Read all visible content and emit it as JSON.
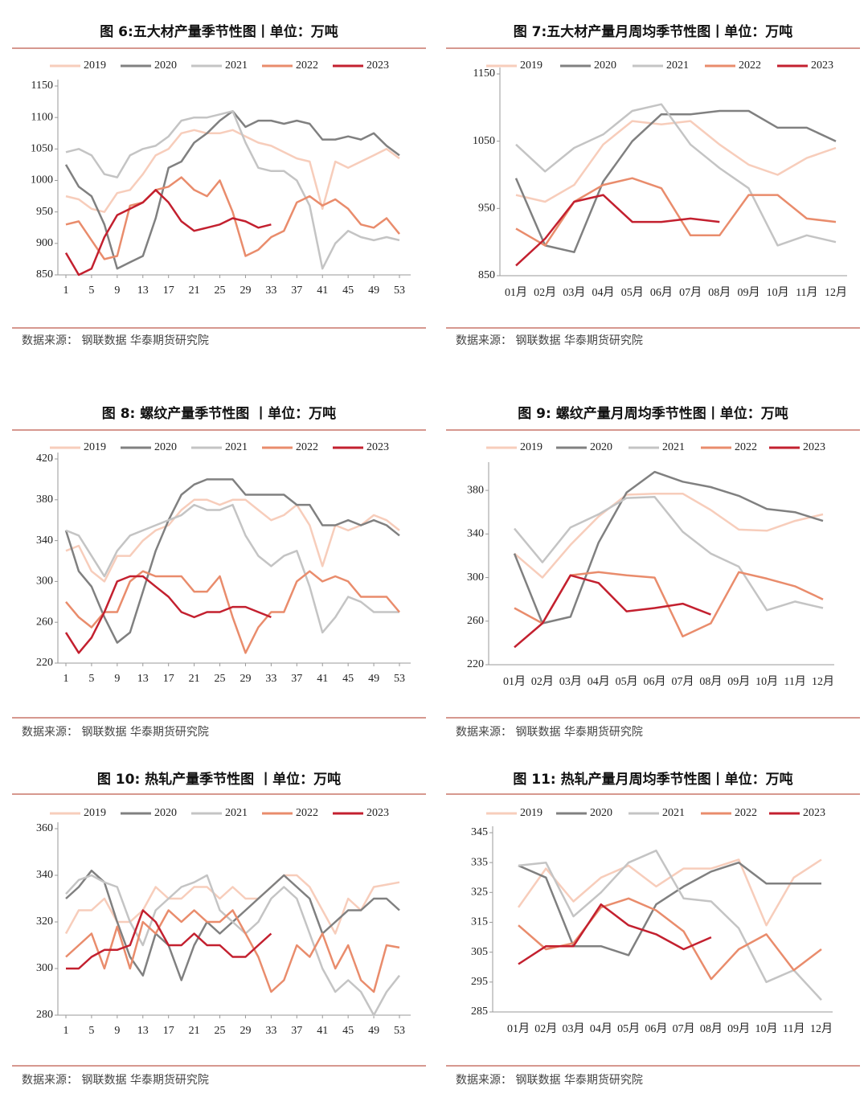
{
  "chart_data": [
    {
      "type": "line",
      "title": "图 6:五大材产量季节性图丨单位：万吨",
      "source": "数据来源： 钢联数据  华泰期货研究院",
      "x": [
        1,
        3,
        5,
        7,
        9,
        11,
        13,
        15,
        17,
        19,
        21,
        23,
        25,
        27,
        29,
        31,
        33,
        35,
        37,
        39,
        41,
        43,
        45,
        47,
        49,
        51,
        53
      ],
      "xlim": [
        1,
        53
      ],
      "xticks": [
        1,
        5,
        9,
        13,
        17,
        21,
        25,
        29,
        33,
        37,
        41,
        45,
        49,
        53
      ],
      "ylim": [
        850,
        1150
      ],
      "yticks": [
        850,
        900,
        950,
        1000,
        1050,
        1100,
        1150
      ],
      "grid": false,
      "series": [
        {
          "name": "2019",
          "color": "#f7cdbb",
          "values": [
            975,
            970,
            955,
            950,
            980,
            985,
            1010,
            1040,
            1050,
            1075,
            1080,
            1075,
            1075,
            1080,
            1070,
            1060,
            1055,
            1045,
            1035,
            1030,
            955,
            1030,
            1020,
            1030,
            1040,
            1050,
            1035
          ]
        },
        {
          "name": "2020",
          "color": "#808080",
          "values": [
            1025,
            990,
            975,
            930,
            860,
            870,
            880,
            940,
            1020,
            1030,
            1060,
            1075,
            1095,
            1110,
            1085,
            1095,
            1095,
            1090,
            1095,
            1090,
            1065,
            1065,
            1070,
            1065,
            1075,
            1055,
            1040
          ]
        },
        {
          "name": "2021",
          "color": "#c4c4c4",
          "values": [
            1045,
            1050,
            1040,
            1010,
            1005,
            1040,
            1050,
            1055,
            1070,
            1095,
            1100,
            1100,
            1105,
            1110,
            1060,
            1020,
            1015,
            1015,
            1000,
            960,
            860,
            900,
            920,
            910,
            905,
            910,
            905
          ]
        },
        {
          "name": "2022",
          "color": "#e98c6c",
          "values": [
            930,
            935,
            905,
            875,
            880,
            960,
            965,
            985,
            990,
            1005,
            985,
            975,
            1000,
            950,
            880,
            890,
            910,
            920,
            965,
            975,
            960,
            970,
            955,
            930,
            925,
            940,
            915
          ]
        },
        {
          "name": "2023",
          "color": "#c3202f",
          "values": [
            885,
            850,
            860,
            910,
            945,
            955,
            965,
            985,
            965,
            935,
            920,
            925,
            930,
            940,
            935,
            925,
            930,
            null,
            null,
            null,
            null,
            null,
            null,
            null,
            null,
            null,
            null
          ]
        }
      ]
    },
    {
      "type": "line",
      "title": "图 7:五大材产量月周均季节性图丨单位：万吨",
      "source": "数据来源： 钢联数据  华泰期货研究院",
      "categories": [
        "01月",
        "02月",
        "03月",
        "04月",
        "05月",
        "06月",
        "07月",
        "08月",
        "09月",
        "10月",
        "11月",
        "12月"
      ],
      "ylim": [
        850,
        1150
      ],
      "yticks": [
        850,
        950,
        1050,
        1150
      ],
      "grid": false,
      "series": [
        {
          "name": "2019",
          "color": "#f7cdbb",
          "values": [
            970,
            960,
            985,
            1045,
            1080,
            1075,
            1080,
            1045,
            1015,
            1000,
            1025,
            1040
          ]
        },
        {
          "name": "2020",
          "color": "#808080",
          "values": [
            995,
            895,
            885,
            990,
            1050,
            1090,
            1090,
            1095,
            1095,
            1070,
            1070,
            1050
          ]
        },
        {
          "name": "2021",
          "color": "#c4c4c4",
          "values": [
            1045,
            1005,
            1040,
            1060,
            1095,
            1105,
            1045,
            1010,
            980,
            895,
            910,
            900
          ]
        },
        {
          "name": "2022",
          "color": "#e98c6c",
          "values": [
            920,
            895,
            960,
            985,
            995,
            980,
            910,
            910,
            970,
            970,
            935,
            930
          ]
        },
        {
          "name": "2023",
          "color": "#c3202f",
          "values": [
            865,
            905,
            960,
            970,
            930,
            930,
            935,
            930,
            null,
            null,
            null,
            null
          ]
        }
      ]
    },
    {
      "type": "line",
      "title": "图 8: 螺纹产量季节性图  丨单位：万吨",
      "source": "数据来源： 钢联数据  华泰期货研究院",
      "x": [
        1,
        3,
        5,
        7,
        9,
        11,
        13,
        15,
        17,
        19,
        21,
        23,
        25,
        27,
        29,
        31,
        33,
        35,
        37,
        39,
        41,
        43,
        45,
        47,
        49,
        51,
        53
      ],
      "xlim": [
        1,
        53
      ],
      "xticks": [
        1,
        5,
        9,
        13,
        17,
        21,
        25,
        29,
        33,
        37,
        41,
        45,
        49,
        53
      ],
      "ylim": [
        220,
        420
      ],
      "yticks": [
        220,
        260,
        300,
        340,
        380,
        420
      ],
      "grid": false,
      "series": [
        {
          "name": "2019",
          "color": "#f7cdbb",
          "values": [
            330,
            335,
            310,
            300,
            325,
            325,
            340,
            350,
            355,
            370,
            380,
            380,
            375,
            380,
            380,
            370,
            360,
            365,
            375,
            355,
            315,
            355,
            350,
            355,
            365,
            360,
            350
          ]
        },
        {
          "name": "2020",
          "color": "#808080",
          "values": [
            350,
            310,
            295,
            265,
            240,
            250,
            290,
            330,
            360,
            385,
            395,
            400,
            400,
            400,
            385,
            385,
            385,
            385,
            375,
            375,
            355,
            355,
            360,
            355,
            360,
            355,
            345
          ]
        },
        {
          "name": "2021",
          "color": "#c4c4c4",
          "values": [
            350,
            345,
            325,
            305,
            330,
            345,
            350,
            355,
            360,
            365,
            375,
            370,
            370,
            375,
            345,
            325,
            315,
            325,
            330,
            295,
            250,
            265,
            285,
            280,
            270,
            270,
            270
          ]
        },
        {
          "name": "2022",
          "color": "#e98c6c",
          "values": [
            280,
            265,
            255,
            270,
            270,
            300,
            310,
            305,
            305,
            305,
            290,
            290,
            305,
            265,
            230,
            255,
            270,
            270,
            300,
            310,
            300,
            305,
            300,
            285,
            285,
            285,
            270
          ]
        },
        {
          "name": "2023",
          "color": "#c3202f",
          "values": [
            250,
            230,
            245,
            270,
            300,
            305,
            305,
            295,
            285,
            270,
            265,
            270,
            270,
            275,
            275,
            270,
            265,
            null,
            null,
            null,
            null,
            null,
            null,
            null,
            null,
            null,
            null
          ]
        }
      ]
    },
    {
      "type": "line",
      "title": "图 9: 螺纹产量月周均季节性图丨单位：万吨",
      "source": "数据来源： 钢联数据  华泰期货研究院",
      "categories": [
        "01月",
        "02月",
        "03月",
        "04月",
        "05月",
        "06月",
        "07月",
        "08月",
        "09月",
        "10月",
        "11月",
        "12月"
      ],
      "ylim": [
        220,
        400
      ],
      "yticks": [
        220,
        260,
        300,
        340,
        380
      ],
      "grid": false,
      "series": [
        {
          "name": "2019",
          "color": "#f7cdbb",
          "values": [
            322,
            300,
            330,
            356,
            376,
            377,
            377,
            362,
            344,
            343,
            352,
            358
          ]
        },
        {
          "name": "2020",
          "color": "#808080",
          "values": [
            322,
            258,
            264,
            332,
            378,
            397,
            388,
            383,
            375,
            363,
            360,
            352
          ]
        },
        {
          "name": "2021",
          "color": "#c4c4c4",
          "values": [
            345,
            314,
            346,
            358,
            373,
            374,
            342,
            322,
            310,
            270,
            278,
            272
          ]
        },
        {
          "name": "2022",
          "color": "#e98c6c",
          "values": [
            272,
            258,
            302,
            305,
            302,
            300,
            246,
            258,
            305,
            299,
            292,
            280
          ]
        },
        {
          "name": "2023",
          "color": "#c3202f",
          "values": [
            236,
            258,
            302,
            295,
            269,
            272,
            276,
            266,
            null,
            null,
            null,
            null
          ]
        }
      ]
    },
    {
      "type": "line",
      "title": "图 10: 热轧产量季节性图  丨单位：万吨",
      "source": "数据来源： 钢联数据  华泰期货研究院",
      "x": [
        1,
        3,
        5,
        7,
        9,
        11,
        13,
        15,
        17,
        19,
        21,
        23,
        25,
        27,
        29,
        31,
        33,
        35,
        37,
        39,
        41,
        43,
        45,
        47,
        49,
        51,
        53
      ],
      "xlim": [
        1,
        53
      ],
      "xticks": [
        1,
        5,
        9,
        13,
        17,
        21,
        25,
        29,
        33,
        37,
        41,
        45,
        49,
        53
      ],
      "ylim": [
        280,
        360
      ],
      "yticks": [
        280,
        300,
        320,
        340,
        360
      ],
      "grid": false,
      "series": [
        {
          "name": "2019",
          "color": "#f7cdbb",
          "values": [
            315,
            325,
            325,
            330,
            320,
            320,
            325,
            335,
            330,
            330,
            335,
            335,
            330,
            335,
            330,
            330,
            335,
            340,
            340,
            335,
            325,
            315,
            330,
            325,
            335,
            336,
            337
          ]
        },
        {
          "name": "2020",
          "color": "#808080",
          "values": [
            330,
            335,
            342,
            337,
            320,
            305,
            297,
            315,
            310,
            295,
            310,
            320,
            315,
            320,
            325,
            330,
            335,
            340,
            335,
            330,
            315,
            320,
            325,
            325,
            330,
            330,
            325
          ]
        },
        {
          "name": "2021",
          "color": "#c4c4c4",
          "values": [
            332,
            338,
            340,
            337,
            335,
            320,
            310,
            325,
            330,
            335,
            337,
            340,
            325,
            320,
            315,
            320,
            330,
            335,
            330,
            315,
            300,
            290,
            295,
            290,
            280,
            290,
            297
          ]
        },
        {
          "name": "2022",
          "color": "#e98c6c",
          "values": [
            305,
            310,
            315,
            300,
            318,
            300,
            320,
            315,
            325,
            320,
            325,
            320,
            320,
            325,
            315,
            305,
            290,
            295,
            310,
            305,
            315,
            300,
            310,
            295,
            290,
            310,
            309
          ]
        },
        {
          "name": "2023",
          "color": "#c3202f",
          "values": [
            300,
            300,
            305,
            308,
            308,
            310,
            325,
            320,
            310,
            310,
            315,
            310,
            310,
            305,
            305,
            310,
            315,
            null,
            null,
            null,
            null,
            null,
            null,
            null,
            null,
            null,
            null
          ]
        }
      ]
    },
    {
      "type": "line",
      "title": "图 11: 热轧产量月周均季节性图丨单位：万吨",
      "source": "数据来源： 钢联数据  华泰期货研究院",
      "categories": [
        "01月",
        "02月",
        "03月",
        "04月",
        "05月",
        "06月",
        "07月",
        "08月",
        "09月",
        "10月",
        "11月",
        "12月"
      ],
      "ylim": [
        285,
        345
      ],
      "yticks": [
        285,
        295,
        305,
        315,
        325,
        335,
        345
      ],
      "grid": false,
      "series": [
        {
          "name": "2019",
          "color": "#f7cdbb",
          "values": [
            320,
            333,
            322,
            330,
            334,
            327,
            333,
            333,
            336,
            314,
            330,
            336
          ]
        },
        {
          "name": "2020",
          "color": "#808080",
          "values": [
            334,
            330,
            307,
            307,
            304,
            321,
            327,
            332,
            335,
            328,
            328,
            328
          ]
        },
        {
          "name": "2021",
          "color": "#c4c4c4",
          "values": [
            334,
            335,
            317,
            325,
            335,
            339,
            323,
            322,
            313,
            295,
            299,
            289
          ]
        },
        {
          "name": "2022",
          "color": "#e98c6c",
          "values": [
            314,
            306,
            308,
            320,
            323,
            319,
            312,
            296,
            306,
            311,
            299,
            306
          ]
        },
        {
          "name": "2023",
          "color": "#c3202f",
          "values": [
            301,
            307,
            307,
            321,
            314,
            311,
            306,
            310,
            null,
            null,
            null,
            null
          ]
        }
      ]
    }
  ]
}
